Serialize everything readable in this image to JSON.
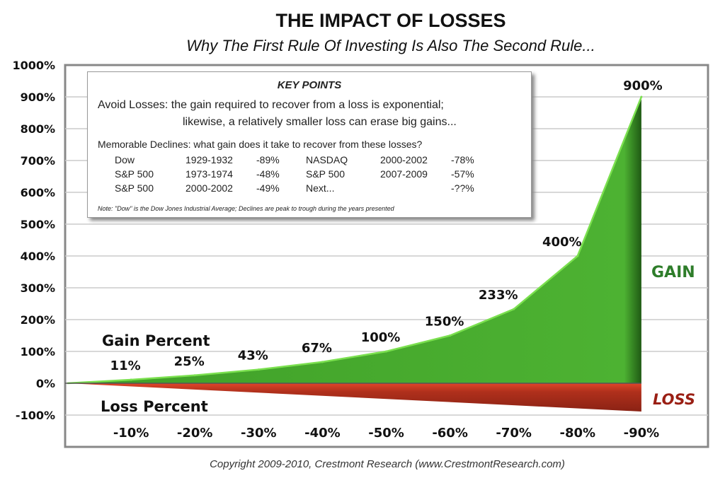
{
  "chart_data": {
    "type": "area",
    "title": "THE IMPACT OF LOSSES",
    "subtitle": "Why The First Rule Of Investing Is Also The Second Rule...",
    "categories": [
      "-10%",
      "-20%",
      "-30%",
      "-40%",
      "-50%",
      "-60%",
      "-70%",
      "-80%",
      "-90%"
    ],
    "loss_values": [
      -10,
      -20,
      -30,
      -40,
      -50,
      -60,
      -70,
      -80,
      -90
    ],
    "gain_values": [
      11,
      25,
      43,
      67,
      100,
      150,
      233,
      400,
      900
    ],
    "gain_labels": [
      "11%",
      "25%",
      "43%",
      "67%",
      "100%",
      "150%",
      "233%",
      "400%",
      "900%"
    ],
    "y_ticks": [
      "1000%",
      "900%",
      "800%",
      "700%",
      "600%",
      "500%",
      "400%",
      "300%",
      "200%",
      "100%",
      "0%",
      "-100%"
    ],
    "ylim": [
      -200,
      1000
    ],
    "grid": true,
    "series_labels": {
      "gain_percent": "Gain Percent",
      "loss_percent": "Loss Percent",
      "gain": "GAIN",
      "loss": "LOSS"
    },
    "colors": {
      "gain": "#4aae2e",
      "gain_edge": "#7be04f",
      "loss": "#a8281a",
      "gain_text": "#2e7d2a",
      "loss_text": "#9a1f14"
    }
  },
  "key_points": {
    "title": "KEY POINTS",
    "line1": "Avoid Losses:  the gain required to recover from a loss is exponential;",
    "line2": "likewise, a relatively smaller loss can erase big gains...",
    "memorable": "Memorable Declines:  what gain does it take to recover from these losses?",
    "rows": [
      [
        "Dow",
        "1929-1932",
        "-89%",
        "NASDAQ",
        "2000-2002",
        "-78%"
      ],
      [
        "S&P 500",
        "1973-1974",
        "-48%",
        "S&P 500",
        "2007-2009",
        "-57%"
      ],
      [
        "S&P 500",
        "2000-2002",
        "-49%",
        "Next...",
        "",
        "-??%"
      ]
    ],
    "note": "Note: \"Dow\" is the Dow Jones Industrial Average; Declines are peak to trough during the years presented"
  },
  "copyright": "Copyright 2009-2010, Crestmont Research (www.CrestmontResearch.com)"
}
